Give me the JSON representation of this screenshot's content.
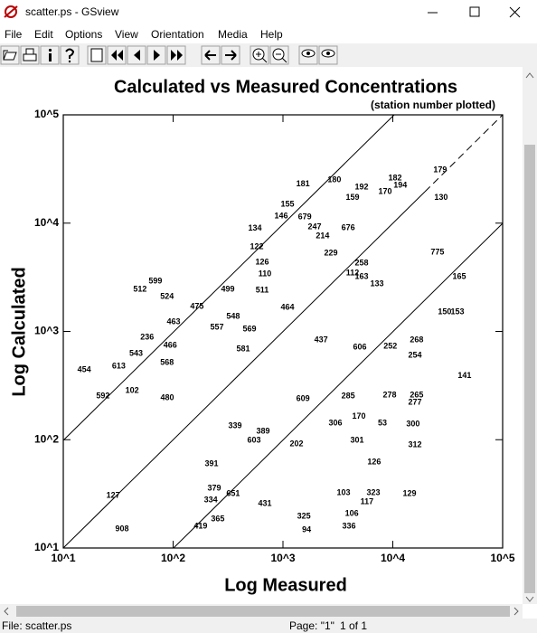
{
  "window": {
    "title": "scatter.ps - GSview",
    "menu": [
      "File",
      "Edit",
      "Options",
      "View",
      "Orientation",
      "Media",
      "Help"
    ],
    "status": {
      "file": "File: scatter.ps",
      "page": "Page: \"1\"",
      "count": "1 of 1"
    }
  },
  "chart_data": {
    "type": "scatter",
    "title": "Calculated vs Measured Concentrations",
    "subtitle": "(station number plotted)",
    "x_label": "Log Measured",
    "y_label": "Log Calculated",
    "xscale": "log",
    "yscale": "log",
    "color": "#000000",
    "xlim": [
      10,
      100000
    ],
    "ylim": [
      10,
      100000
    ],
    "xticks": [
      {
        "value": 10,
        "label": "10^1"
      },
      {
        "value": 100,
        "label": "10^2"
      },
      {
        "value": 1000,
        "label": "10^3"
      },
      {
        "value": 10000,
        "label": "10^4"
      },
      {
        "value": 100000,
        "label": "10^5"
      }
    ],
    "yticks": [
      {
        "value": 10,
        "label": "10^1"
      },
      {
        "value": 100,
        "label": "10^2"
      },
      {
        "value": 1000,
        "label": "10^3"
      },
      {
        "value": 10000,
        "label": "10^4"
      },
      {
        "value": 100000,
        "label": "10^5"
      }
    ],
    "point_labels": [
      "180",
      "181",
      "192",
      "182",
      "134",
      "146",
      "679",
      "122",
      "126",
      "110",
      "229",
      "512",
      "599",
      "524",
      "499",
      "463",
      "466",
      "543",
      "568",
      "613",
      "592",
      "454",
      "268",
      "254",
      "252",
      "141",
      "150",
      "153",
      "165",
      "775",
      "265",
      "277",
      "300",
      "312",
      "53",
      "129",
      "117",
      "323",
      "103",
      "336",
      "106",
      "94",
      "325",
      "126",
      "334",
      "379",
      "419",
      "365",
      "431",
      "651",
      "339",
      "389",
      "603",
      "391",
      "569",
      "581",
      "557",
      "548",
      "475",
      "511",
      "464",
      "437",
      "606",
      "609",
      "306",
      "301",
      "170",
      "285",
      "278",
      "258",
      "202",
      "127",
      "908",
      "155",
      "247",
      "676",
      "214",
      "159",
      "170",
      "194",
      "130",
      "133",
      "163",
      "112",
      "236",
      "480",
      "102",
      "179"
    ],
    "x": [
      2940,
      1520,
      5200,
      10500,
      556,
      964,
      1580,
      577,
      647,
      684,
      2730,
      50,
      69,
      88,
      315,
      101,
      94,
      46,
      88,
      32,
      23,
      15.5,
      16500,
      15900,
      9500,
      45000,
      29700,
      38800,
      40300,
      25500,
      16500,
      15900,
      15300,
      15900,
      8040,
      14200,
      5820,
      6650,
      3560,
      3990,
      4230,
      1640,
      1550,
      6770,
      220,
      237,
      178,
      255,
      684,
      352,
      366,
      659,
      546,
      224,
      496,
      435,
      251,
      352,
      165,
      647,
      1100,
      2220,
      5010,
      1520,
      3000,
      4730,
      4910,
      3920,
      9350,
      5200,
      1330,
      28.4,
      34.3,
      1100,
      1940,
      3920,
      2300,
      4300,
      8510,
      11700,
      27500,
      7180,
      5200,
      4300,
      58,
      88.5,
      42.3,
      27000
    ],
    "values": [
      25000,
      23000,
      21500,
      26000,
      8900,
      11600,
      11400,
      6000,
      4360,
      3390,
      5270,
      2440,
      2900,
      2100,
      2440,
      1220,
      743,
      624,
      515,
      477,
      253,
      442,
      834,
      601,
      728,
      387,
      1510,
      1510,
      3200,
      5380,
      258,
      221,
      139,
      89.6,
      142,
      31.7,
      26.7,
      32.3,
      32.3,
      15.9,
      20.7,
      14.7,
      19.6,
      62,
      27.7,
      35.6,
      15.9,
      18.5,
      25.6,
      31.7,
      134,
      119,
      98.6,
      59.8,
      1050,
      687,
      1090,
      1370,
      1700,
      2400,
      1660,
      834,
      714,
      239,
      142,
      98.6,
      163,
      253,
      258,
      4280,
      91,
      30.5,
      15,
      14900,
      9220,
      9040,
      7600,
      17100,
      19500,
      22300,
      17100,
      2740,
      3200,
      3460,
      883,
      243,
      284,
      31000
    ]
  }
}
